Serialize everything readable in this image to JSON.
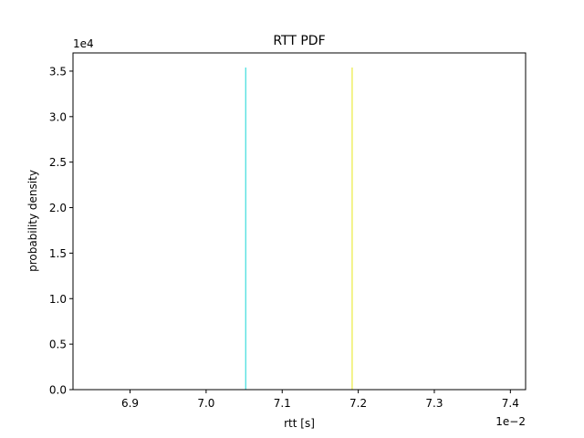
{
  "chart_data": {
    "type": "line",
    "title": "RTT PDF",
    "xlabel": "rtt [s]",
    "ylabel": "probability density",
    "x_offset_label": "1e−2",
    "y_offset_label": "1e4",
    "xlim": [
      0.06825,
      0.0742
    ],
    "ylim": [
      0,
      37000
    ],
    "x_ticks": [
      {
        "value": 0.069,
        "label": "6.9"
      },
      {
        "value": 0.07,
        "label": "7.0"
      },
      {
        "value": 0.071,
        "label": "7.1"
      },
      {
        "value": 0.072,
        "label": "7.2"
      },
      {
        "value": 0.073,
        "label": "7.3"
      },
      {
        "value": 0.074,
        "label": "7.4"
      }
    ],
    "y_ticks": [
      {
        "value": 0,
        "label": "0.0"
      },
      {
        "value": 5000,
        "label": "0.5"
      },
      {
        "value": 10000,
        "label": "1.0"
      },
      {
        "value": 15000,
        "label": "1.5"
      },
      {
        "value": 20000,
        "label": "2.0"
      },
      {
        "value": 25000,
        "label": "2.5"
      },
      {
        "value": 30000,
        "label": "3.0"
      },
      {
        "value": 35000,
        "label": "3.5"
      }
    ],
    "grid": false,
    "series": [
      {
        "color": "#17d6d6",
        "x": [
          0.07052,
          0.07052
        ],
        "y": [
          0,
          35400
        ]
      },
      {
        "color": "#e6e619",
        "x": [
          0.07192,
          0.07192
        ],
        "y": [
          0,
          35400
        ]
      }
    ]
  }
}
